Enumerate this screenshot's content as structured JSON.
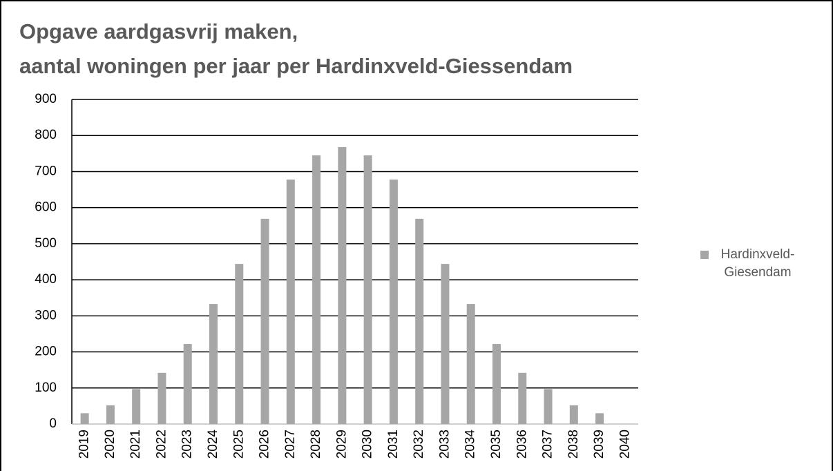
{
  "chart_data": {
    "type": "bar",
    "title": [
      "Opgave aardgasvrij maken,",
      "aantal woningen per jaar per Hardinxveld-Giessendam"
    ],
    "categories": [
      "2019",
      "2020",
      "2021",
      "2022",
      "2023",
      "2024",
      "2025",
      "2026",
      "2027",
      "2028",
      "2029",
      "2030",
      "2031",
      "2032",
      "2033",
      "2034",
      "2035",
      "2036",
      "2037",
      "2038",
      "2039",
      "2040"
    ],
    "series": [
      {
        "name": "Hardinxveld-Giesendam",
        "color": "#a6a6a6",
        "values": [
          30,
          52,
          97,
          142,
          222,
          333,
          444,
          569,
          678,
          745,
          768,
          745,
          678,
          569,
          444,
          333,
          222,
          142,
          97,
          52,
          30,
          0
        ]
      }
    ],
    "ylim": [
      0,
      900
    ],
    "yticks": [
      0,
      100,
      200,
      300,
      400,
      500,
      600,
      700,
      800,
      900
    ],
    "grid": true,
    "legend": "right"
  }
}
